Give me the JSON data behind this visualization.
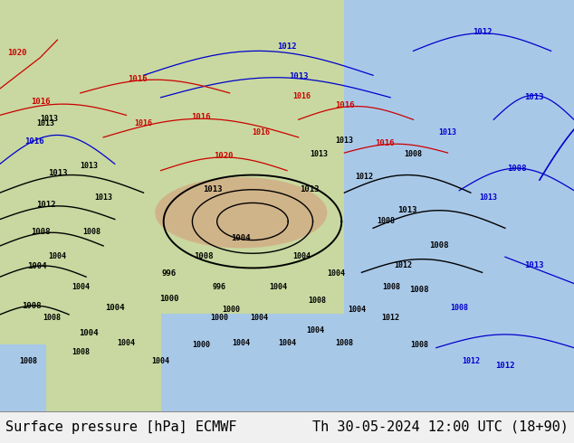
{
  "title_left": "Surface pressure [hPa] ECMWF",
  "title_right": "Th 30-05-2024 12:00 UTC (18+90)",
  "font_family": "monospace",
  "title_fontsize": 11,
  "title_color": "#000000",
  "land_color": "#c8d8a0",
  "ocean_color": "#a8c8e8",
  "highland_color": "#d4a882",
  "bar_bg": "#f0f0f0",
  "figsize": [
    6.34,
    4.9
  ],
  "dpi": 100,
  "bar_height": 0.072
}
